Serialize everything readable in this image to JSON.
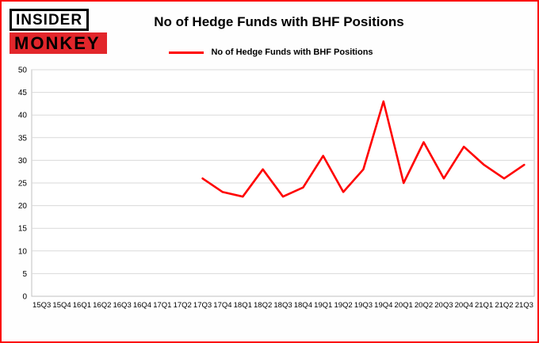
{
  "page": {
    "background": "#fefefe",
    "border_color": "#fb0a0a"
  },
  "logo": {
    "line1": "INSIDER",
    "line2": "MONKEY",
    "accent_color": "#e2262b"
  },
  "header": {
    "title": "No of Hedge Funds with BHF Positions"
  },
  "legend": {
    "label": "No of Hedge Funds with BHF Positions",
    "color": "#ff0000"
  },
  "chart_data": {
    "type": "line",
    "title": "No of Hedge Funds with BHF Positions",
    "xlabel": "",
    "ylabel": "",
    "ylim": [
      0,
      50
    ],
    "ytick_step": 5,
    "grid": true,
    "legend_position": "top",
    "line_color": "#ff0000",
    "grid_color": "#d9d9d9",
    "plot_border_color": "#c0c0c0",
    "categories": [
      "15Q3",
      "15Q4",
      "16Q1",
      "16Q2",
      "16Q3",
      "16Q4",
      "17Q1",
      "17Q2",
      "17Q3",
      "17Q4",
      "18Q1",
      "18Q2",
      "18Q3",
      "18Q4",
      "19Q1",
      "19Q2",
      "19Q3",
      "19Q4",
      "20Q1",
      "20Q2",
      "20Q3",
      "20Q4",
      "21Q1",
      "21Q2",
      "21Q3"
    ],
    "series": [
      {
        "name": "No of Hedge Funds with BHF Positions",
        "color": "#ff0000",
        "values": [
          null,
          null,
          null,
          null,
          null,
          null,
          null,
          null,
          26,
          23,
          22,
          28,
          22,
          24,
          31,
          23,
          28,
          43,
          25,
          34,
          26,
          33,
          29,
          26,
          29
        ]
      }
    ]
  }
}
